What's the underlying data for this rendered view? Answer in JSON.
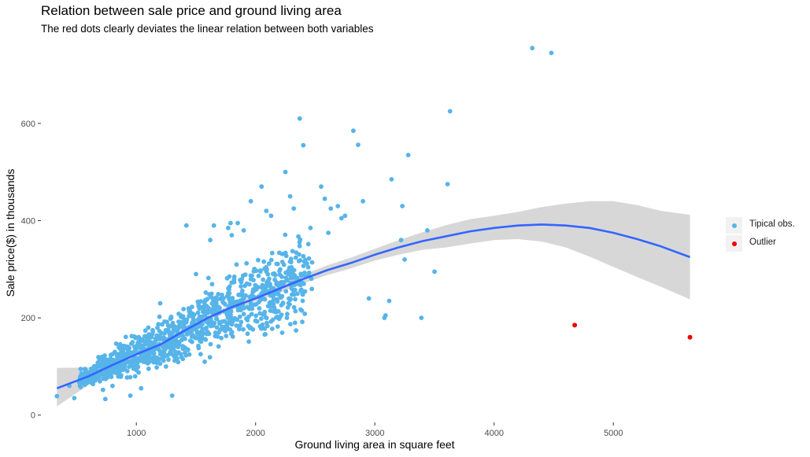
{
  "chart_data": {
    "type": "scatter",
    "title": "Relation between sale price and ground living area",
    "subtitle": "The red dots clearly deviates the linear relation between both variables",
    "xlabel": "Ground living area in square feet",
    "ylabel": "Sale price($) in thousands",
    "xlim": [
      200,
      5850
    ],
    "ylim": [
      -15,
      760
    ],
    "x_ticks": [
      1000,
      2000,
      3000,
      4000,
      5000
    ],
    "y_ticks": [
      0,
      200,
      400,
      600
    ],
    "grid": false,
    "legend_position": "right",
    "series": [
      {
        "name": "Tipical obs.",
        "color": "#56B4E9",
        "bulk_trend": {
          "x_min": 520,
          "x_max": 2700,
          "note": "dense cloud following the fitted curve"
        },
        "points": [
          [
            334,
            39
          ],
          [
            438,
            60
          ],
          [
            480,
            35
          ],
          [
            520,
            68
          ],
          [
            630,
            82
          ],
          [
            720,
            52
          ],
          [
            740,
            33
          ],
          [
            800,
            60
          ],
          [
            850,
            95
          ],
          [
            900,
            100
          ],
          [
            950,
            40
          ],
          [
            1040,
            55
          ],
          [
            1100,
            180
          ],
          [
            1200,
            230
          ],
          [
            1300,
            40
          ],
          [
            1420,
            390
          ],
          [
            1500,
            290
          ],
          [
            1620,
            360
          ],
          [
            1650,
            390
          ],
          [
            1770,
            385
          ],
          [
            1790,
            395
          ],
          [
            1800,
            370
          ],
          [
            1850,
            395
          ],
          [
            1900,
            380
          ],
          [
            1960,
            440
          ],
          [
            2050,
            470
          ],
          [
            2090,
            420
          ],
          [
            2130,
            410
          ],
          [
            2250,
            500
          ],
          [
            2290,
            450
          ],
          [
            2320,
            425
          ],
          [
            2370,
            610
          ],
          [
            2400,
            555
          ],
          [
            2460,
            385
          ],
          [
            2550,
            470
          ],
          [
            2580,
            445
          ],
          [
            2610,
            375
          ],
          [
            2630,
            425
          ],
          [
            2690,
            430
          ],
          [
            2720,
            405
          ],
          [
            2750,
            410
          ],
          [
            2820,
            585
          ],
          [
            2860,
            556
          ],
          [
            2900,
            440
          ],
          [
            2950,
            240
          ],
          [
            3080,
            200
          ],
          [
            3090,
            205
          ],
          [
            3120,
            235
          ],
          [
            3140,
            485
          ],
          [
            3220,
            360
          ],
          [
            3230,
            430
          ],
          [
            3250,
            320
          ],
          [
            3280,
            535
          ],
          [
            3390,
            200
          ],
          [
            3440,
            380
          ],
          [
            3500,
            295
          ],
          [
            3610,
            475
          ],
          [
            3630,
            625
          ],
          [
            4320,
            755
          ],
          [
            4480,
            745
          ]
        ]
      },
      {
        "name": "Outlier",
        "color": "#EE0000",
        "points": [
          [
            4676,
            185
          ],
          [
            5642,
            160
          ]
        ]
      }
    ],
    "smooth": {
      "color": "#3366FF",
      "x": [
        334,
        600,
        800,
        1000,
        1200,
        1400,
        1600,
        1800,
        2000,
        2200,
        2400,
        2600,
        2800,
        3000,
        3200,
        3400,
        3600,
        3800,
        4000,
        4200,
        4400,
        4600,
        4800,
        5000,
        5200,
        5400,
        5642
      ],
      "y": [
        55,
        80,
        103,
        125,
        145,
        173,
        200,
        222,
        240,
        260,
        280,
        298,
        313,
        330,
        345,
        358,
        368,
        378,
        385,
        390,
        392,
        390,
        385,
        375,
        362,
        347,
        325
      ],
      "lower": [
        18,
        62,
        92,
        116,
        139,
        167,
        195,
        216,
        234,
        252,
        271,
        288,
        302,
        318,
        330,
        340,
        345,
        353,
        360,
        362,
        357,
        345,
        326,
        305,
        284,
        264,
        238
      ],
      "upper": [
        97,
        98,
        114,
        134,
        152,
        179,
        205,
        228,
        246,
        268,
        289,
        308,
        324,
        342,
        360,
        376,
        391,
        403,
        410,
        418,
        428,
        435,
        440,
        440,
        432,
        420,
        412
      ]
    }
  }
}
